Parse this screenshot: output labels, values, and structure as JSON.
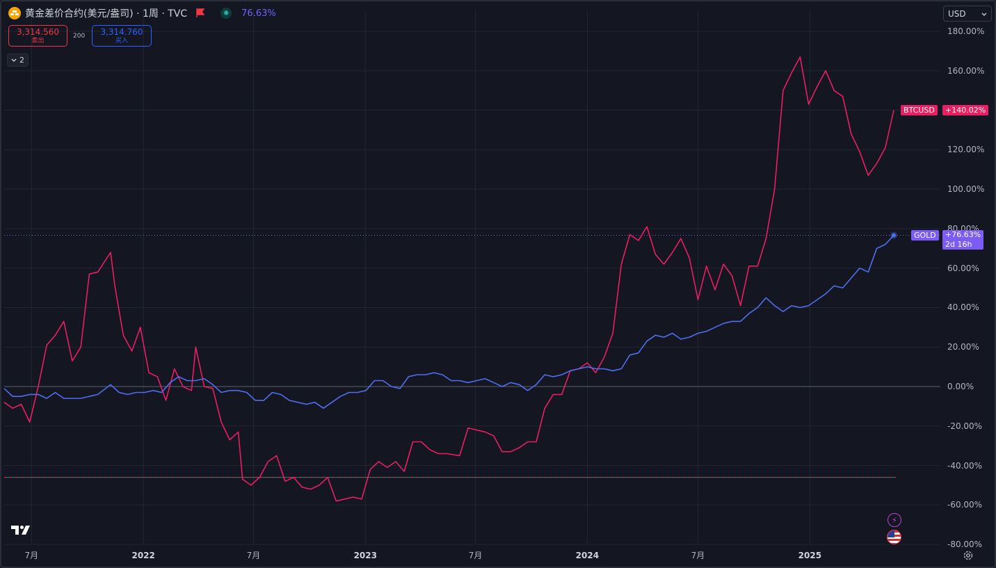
{
  "header": {
    "title": "黄金差价合约(美元/盎司) · 1周 · TVC",
    "percent": "76.63%"
  },
  "quotes": {
    "sell_value": "3,314.560",
    "sell_label": "卖出",
    "spread": "200",
    "buy_value": "3,314.760",
    "buy_label": "买入"
  },
  "collapse_count": "2",
  "currency": "USD",
  "colors": {
    "btc": "#e91e63",
    "gold": "#4f6ff0",
    "background": "#141722",
    "grid": "#232733"
  },
  "tags": {
    "btc_name": "BTCUSD",
    "btc_value": "+140.02%",
    "gold_name": "GOLD",
    "gold_value": "+76.63%",
    "gold_countdown": "2d 16h"
  },
  "icons": [
    "flag-icon",
    "indicator-icon",
    "chevron-down-icon",
    "tradingview-logo",
    "lightning-icon",
    "us-flag-icon",
    "settings-icon"
  ],
  "chart_data": {
    "type": "line",
    "scale": "percent",
    "x_start": "2021-05-17",
    "x_end": "2025-05-19",
    "ylim": [
      -80,
      185
    ],
    "y_ticks": [
      "180.00%",
      "160.00%",
      "140.00%",
      "120.00%",
      "100.00%",
      "80.00%",
      "60.00%",
      "40.00%",
      "20.00%",
      "0.00%",
      "-20.00%",
      "-40.00%",
      "-60.00%",
      "-80.00%"
    ],
    "x_ticks": [
      {
        "label": "7月",
        "date": "2021-07-01",
        "year": false
      },
      {
        "label": "2022",
        "date": "2022-01-01",
        "year": true
      },
      {
        "label": "7月",
        "date": "2022-07-01",
        "year": false
      },
      {
        "label": "2023",
        "date": "2023-01-01",
        "year": true
      },
      {
        "label": "7月",
        "date": "2023-07-01",
        "year": false
      },
      {
        "label": "2024",
        "date": "2024-01-01",
        "year": true
      },
      {
        "label": "7月",
        "date": "2024-07-01",
        "year": false
      },
      {
        "label": "2025",
        "date": "2025-01-01",
        "year": true
      }
    ],
    "grid": true,
    "series": [
      {
        "name": "BTCUSD",
        "last": 140.02,
        "points": [
          [
            "2021-05-17",
            -8
          ],
          [
            "2021-05-31",
            -11
          ],
          [
            "2021-06-14",
            -9
          ],
          [
            "2021-06-28",
            -18
          ],
          [
            "2021-07-12",
            0
          ],
          [
            "2021-07-26",
            21
          ],
          [
            "2021-08-09",
            26
          ],
          [
            "2021-08-23",
            33
          ],
          [
            "2021-09-06",
            13
          ],
          [
            "2021-09-20",
            20
          ],
          [
            "2021-10-04",
            57
          ],
          [
            "2021-10-18",
            58
          ],
          [
            "2021-11-08",
            68
          ],
          [
            "2021-11-15",
            51
          ],
          [
            "2021-11-29",
            26
          ],
          [
            "2021-12-13",
            18
          ],
          [
            "2021-12-27",
            30
          ],
          [
            "2022-01-10",
            7
          ],
          [
            "2022-01-24",
            5
          ],
          [
            "2022-02-07",
            -7
          ],
          [
            "2022-02-21",
            9
          ],
          [
            "2022-03-07",
            0
          ],
          [
            "2022-03-21",
            -2
          ],
          [
            "2022-03-28",
            20
          ],
          [
            "2022-04-11",
            0
          ],
          [
            "2022-04-25",
            -1
          ],
          [
            "2022-05-09",
            -18
          ],
          [
            "2022-05-23",
            -27
          ],
          [
            "2022-06-06",
            -23
          ],
          [
            "2022-06-13",
            -47
          ],
          [
            "2022-06-27",
            -50
          ],
          [
            "2022-07-11",
            -46
          ],
          [
            "2022-07-25",
            -38
          ],
          [
            "2022-08-08",
            -35
          ],
          [
            "2022-08-22",
            -48
          ],
          [
            "2022-09-05",
            -46
          ],
          [
            "2022-09-19",
            -51
          ],
          [
            "2022-10-03",
            -52
          ],
          [
            "2022-10-17",
            -50
          ],
          [
            "2022-10-31",
            -46
          ],
          [
            "2022-11-14",
            -58
          ],
          [
            "2022-11-28",
            -57
          ],
          [
            "2022-12-12",
            -56
          ],
          [
            "2022-12-26",
            -57
          ],
          [
            "2023-01-09",
            -42
          ],
          [
            "2023-01-23",
            -38
          ],
          [
            "2023-02-06",
            -41
          ],
          [
            "2023-02-20",
            -38
          ],
          [
            "2023-03-06",
            -43
          ],
          [
            "2023-03-20",
            -28
          ],
          [
            "2023-04-03",
            -28
          ],
          [
            "2023-04-17",
            -32
          ],
          [
            "2023-05-01",
            -34
          ],
          [
            "2023-05-15",
            -34
          ],
          [
            "2023-06-05",
            -35
          ],
          [
            "2023-06-19",
            -21
          ],
          [
            "2023-07-03",
            -22
          ],
          [
            "2023-07-17",
            -23
          ],
          [
            "2023-07-31",
            -25
          ],
          [
            "2023-08-14",
            -33
          ],
          [
            "2023-08-28",
            -33
          ],
          [
            "2023-09-11",
            -31
          ],
          [
            "2023-09-25",
            -28
          ],
          [
            "2023-10-09",
            -28
          ],
          [
            "2023-10-23",
            -11
          ],
          [
            "2023-11-06",
            -4
          ],
          [
            "2023-11-20",
            -4
          ],
          [
            "2023-12-04",
            8
          ],
          [
            "2023-12-18",
            9
          ],
          [
            "2024-01-01",
            12
          ],
          [
            "2024-01-15",
            7
          ],
          [
            "2024-01-29",
            15
          ],
          [
            "2024-02-12",
            27
          ],
          [
            "2024-02-26",
            62
          ],
          [
            "2024-03-11",
            77
          ],
          [
            "2024-03-25",
            74
          ],
          [
            "2024-04-08",
            81
          ],
          [
            "2024-04-22",
            67
          ],
          [
            "2024-05-06",
            62
          ],
          [
            "2024-05-20",
            68
          ],
          [
            "2024-06-03",
            75
          ],
          [
            "2024-06-17",
            65
          ],
          [
            "2024-07-01",
            44
          ],
          [
            "2024-07-15",
            61
          ],
          [
            "2024-07-29",
            49
          ],
          [
            "2024-08-12",
            62
          ],
          [
            "2024-08-26",
            56
          ],
          [
            "2024-09-09",
            41
          ],
          [
            "2024-09-23",
            61
          ],
          [
            "2024-10-07",
            61
          ],
          [
            "2024-10-21",
            75
          ],
          [
            "2024-11-04",
            100
          ],
          [
            "2024-11-18",
            150
          ],
          [
            "2024-12-02",
            159
          ],
          [
            "2024-12-16",
            167
          ],
          [
            "2024-12-30",
            143
          ],
          [
            "2025-01-13",
            152
          ],
          [
            "2025-01-27",
            160
          ],
          [
            "2025-02-10",
            150
          ],
          [
            "2025-02-24",
            147
          ],
          [
            "2025-03-10",
            128
          ],
          [
            "2025-03-24",
            119
          ],
          [
            "2025-04-07",
            107
          ],
          [
            "2025-04-21",
            113
          ],
          [
            "2025-05-05",
            121
          ],
          [
            "2025-05-19",
            140.02
          ]
        ]
      },
      {
        "name": "GOLD",
        "last": 76.63,
        "points": [
          [
            "2021-05-17",
            -1
          ],
          [
            "2021-05-31",
            -5
          ],
          [
            "2021-06-14",
            -5
          ],
          [
            "2021-06-28",
            -4
          ],
          [
            "2021-07-12",
            -4
          ],
          [
            "2021-07-26",
            -6
          ],
          [
            "2021-08-09",
            -3
          ],
          [
            "2021-08-23",
            -6
          ],
          [
            "2021-09-06",
            -6
          ],
          [
            "2021-09-20",
            -6
          ],
          [
            "2021-10-04",
            -5
          ],
          [
            "2021-10-18",
            -4
          ],
          [
            "2021-11-08",
            1
          ],
          [
            "2021-11-22",
            -3
          ],
          [
            "2021-12-06",
            -4
          ],
          [
            "2021-12-20",
            -3
          ],
          [
            "2022-01-03",
            -3
          ],
          [
            "2022-01-17",
            -2
          ],
          [
            "2022-01-31",
            -3
          ],
          [
            "2022-02-14",
            2
          ],
          [
            "2022-02-28",
            5
          ],
          [
            "2022-03-14",
            3
          ],
          [
            "2022-03-28",
            3
          ],
          [
            "2022-04-11",
            4
          ],
          [
            "2022-04-25",
            1
          ],
          [
            "2022-05-09",
            -3
          ],
          [
            "2022-05-23",
            -2
          ],
          [
            "2022-06-06",
            -2
          ],
          [
            "2022-06-20",
            -3
          ],
          [
            "2022-07-04",
            -7
          ],
          [
            "2022-07-18",
            -7
          ],
          [
            "2022-08-01",
            -3
          ],
          [
            "2022-08-15",
            -4
          ],
          [
            "2022-08-29",
            -7
          ],
          [
            "2022-09-12",
            -8
          ],
          [
            "2022-09-26",
            -9
          ],
          [
            "2022-10-10",
            -8
          ],
          [
            "2022-10-24",
            -11
          ],
          [
            "2022-11-07",
            -8
          ],
          [
            "2022-11-21",
            -5
          ],
          [
            "2022-12-05",
            -3
          ],
          [
            "2022-12-19",
            -3
          ],
          [
            "2023-01-02",
            -2
          ],
          [
            "2023-01-16",
            3
          ],
          [
            "2023-01-30",
            3
          ],
          [
            "2023-02-13",
            0
          ],
          [
            "2023-02-27",
            -1
          ],
          [
            "2023-03-13",
            5
          ],
          [
            "2023-03-27",
            6
          ],
          [
            "2023-04-10",
            6
          ],
          [
            "2023-04-24",
            7
          ],
          [
            "2023-05-08",
            6
          ],
          [
            "2023-05-22",
            3
          ],
          [
            "2023-06-05",
            3
          ],
          [
            "2023-06-19",
            2
          ],
          [
            "2023-07-03",
            3
          ],
          [
            "2023-07-17",
            4
          ],
          [
            "2023-07-31",
            2
          ],
          [
            "2023-08-14",
            0
          ],
          [
            "2023-08-28",
            2
          ],
          [
            "2023-09-11",
            1
          ],
          [
            "2023-09-25",
            -2
          ],
          [
            "2023-10-09",
            1
          ],
          [
            "2023-10-23",
            6
          ],
          [
            "2023-11-06",
            5
          ],
          [
            "2023-11-20",
            6
          ],
          [
            "2023-12-04",
            8
          ],
          [
            "2023-12-18",
            9
          ],
          [
            "2024-01-01",
            10
          ],
          [
            "2024-01-15",
            9
          ],
          [
            "2024-01-29",
            9
          ],
          [
            "2024-02-12",
            8
          ],
          [
            "2024-02-26",
            9
          ],
          [
            "2024-03-11",
            16
          ],
          [
            "2024-03-25",
            17
          ],
          [
            "2024-04-08",
            23
          ],
          [
            "2024-04-22",
            26
          ],
          [
            "2024-05-06",
            25
          ],
          [
            "2024-05-20",
            27
          ],
          [
            "2024-06-03",
            24
          ],
          [
            "2024-06-17",
            25
          ],
          [
            "2024-07-01",
            27
          ],
          [
            "2024-07-15",
            28
          ],
          [
            "2024-07-29",
            30
          ],
          [
            "2024-08-12",
            32
          ],
          [
            "2024-08-26",
            33
          ],
          [
            "2024-09-09",
            33
          ],
          [
            "2024-09-23",
            37
          ],
          [
            "2024-10-07",
            40
          ],
          [
            "2024-10-21",
            45
          ],
          [
            "2024-11-04",
            41
          ],
          [
            "2024-11-18",
            38
          ],
          [
            "2024-12-02",
            41
          ],
          [
            "2024-12-16",
            40
          ],
          [
            "2024-12-30",
            41
          ],
          [
            "2025-01-13",
            44
          ],
          [
            "2025-01-27",
            47
          ],
          [
            "2025-02-10",
            51
          ],
          [
            "2025-02-24",
            50
          ],
          [
            "2025-03-10",
            55
          ],
          [
            "2025-03-24",
            60
          ],
          [
            "2025-04-07",
            58
          ],
          [
            "2025-04-21",
            70
          ],
          [
            "2025-05-05",
            72
          ],
          [
            "2025-05-19",
            76.63
          ]
        ]
      }
    ],
    "horizontal_lines": [
      0,
      76.63,
      -46
    ]
  }
}
